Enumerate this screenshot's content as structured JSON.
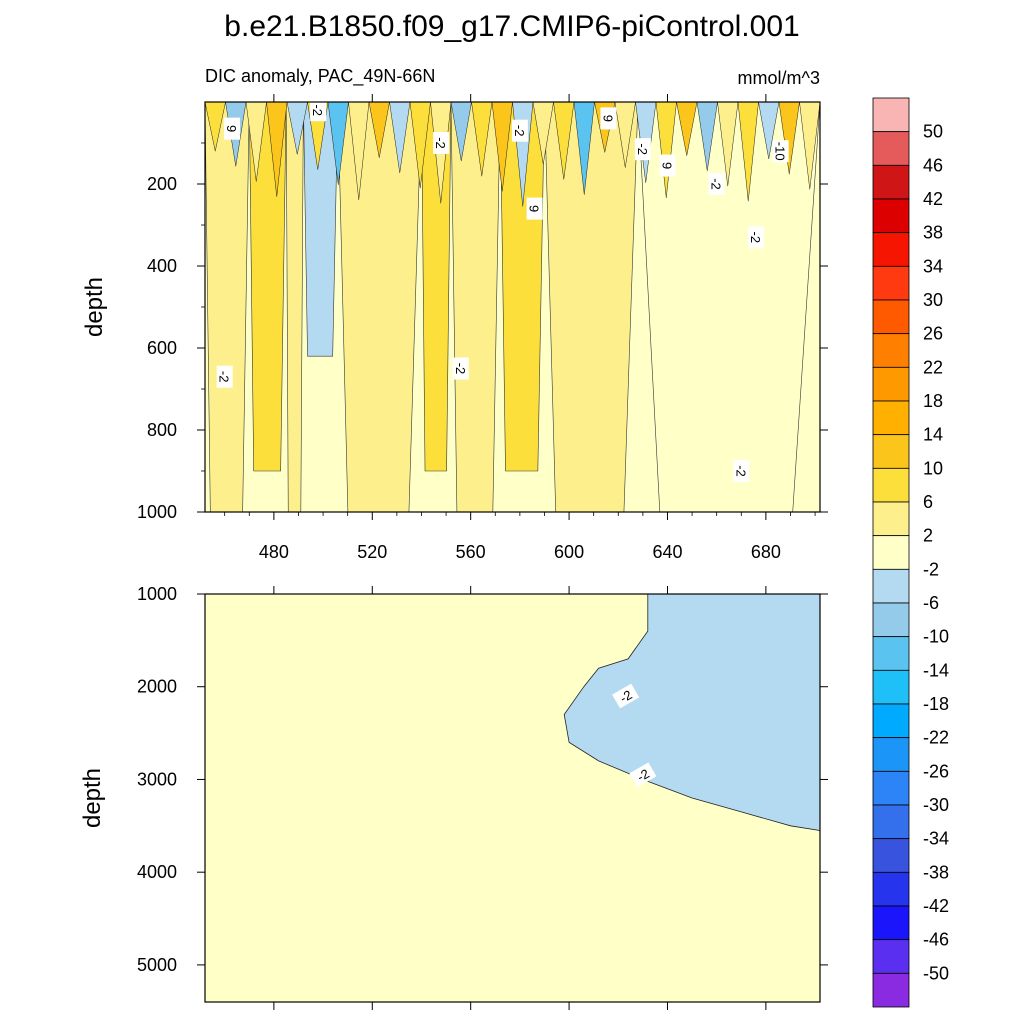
{
  "chart_data": {
    "type": "contour",
    "title": "b.e21.B1850.f09_g17.CMIP6-piControl.001",
    "subtitle": "DIC anomaly, PAC_49N-66N",
    "units": "mmol/m^3",
    "xlim": [
      452,
      702
    ],
    "x_ticks": [
      480,
      520,
      560,
      600,
      640,
      680
    ],
    "upper_panel": {
      "ylabel": "depth",
      "ylim": [
        1000,
        0
      ],
      "y_ticks": [
        200,
        400,
        600,
        800,
        1000
      ],
      "bands": [
        {
          "x0": 452,
          "x1": 470,
          "value": 2
        },
        {
          "x0": 470,
          "x1": 485,
          "value": 6
        },
        {
          "x0": 485,
          "x1": 492,
          "value": 2
        },
        {
          "x0": 492,
          "x1": 506,
          "value": -6
        },
        {
          "x0": 506,
          "x1": 540,
          "value": 2
        },
        {
          "x0": 540,
          "x1": 552,
          "value": 6
        },
        {
          "x0": 552,
          "x1": 572,
          "value": 2
        },
        {
          "x0": 572,
          "x1": 590,
          "value": 6
        },
        {
          "x0": 590,
          "x1": 628,
          "value": 2
        },
        {
          "x0": 628,
          "x1": 702,
          "value": -2
        }
      ],
      "contour_labels": [
        {
          "x": 463,
          "y": 65,
          "text": "9"
        },
        {
          "x": 498,
          "y": 20,
          "text": "-2"
        },
        {
          "x": 548,
          "y": 100,
          "text": "-2"
        },
        {
          "x": 580,
          "y": 70,
          "text": "-2"
        },
        {
          "x": 616,
          "y": 40,
          "text": "9"
        },
        {
          "x": 630,
          "y": 115,
          "text": "-2"
        },
        {
          "x": 640,
          "y": 155,
          "text": "9"
        },
        {
          "x": 686,
          "y": 120,
          "text": "-10"
        },
        {
          "x": 460,
          "y": 670,
          "text": "-2"
        },
        {
          "x": 556,
          "y": 650,
          "text": "-2"
        },
        {
          "x": 586,
          "y": 260,
          "text": "9"
        },
        {
          "x": 660,
          "y": 200,
          "text": "-2"
        },
        {
          "x": 676,
          "y": 330,
          "text": "-2"
        },
        {
          "x": 670,
          "y": 900,
          "text": "-2"
        }
      ]
    },
    "lower_panel": {
      "ylabel": "depth",
      "ylim": [
        5400,
        1000
      ],
      "y_ticks": [
        1000,
        2000,
        3000,
        4000,
        5000
      ],
      "contour_labels": [
        {
          "x": 623,
          "y": 2100,
          "text": "-2"
        },
        {
          "x": 630,
          "y": 2950,
          "text": "-2"
        }
      ]
    },
    "colorbar": {
      "levels": [
        50,
        46,
        42,
        38,
        34,
        30,
        26,
        22,
        18,
        14,
        10,
        6,
        2,
        -2,
        -6,
        -10,
        -14,
        -18,
        -22,
        -26,
        -30,
        -34,
        -38,
        -42,
        -46,
        -50
      ],
      "colors": [
        "#f9b4b4",
        "#e55a5a",
        "#cf1515",
        "#dc0000",
        "#f51500",
        "#ff3a10",
        "#ff5a00",
        "#ff7f00",
        "#ff9900",
        "#ffb000",
        "#fcc51b",
        "#fddf3c",
        "#fdf08c",
        "#ffffc8",
        "#b3daf1",
        "#94cbeb",
        "#5ac3f0",
        "#1fbff8",
        "#00aaff",
        "#1c95f9",
        "#2c84f6",
        "#3570ec",
        "#3853de",
        "#2734ee",
        "#1a15fb",
        "#5b2ff0",
        "#8a2be2"
      ]
    }
  }
}
